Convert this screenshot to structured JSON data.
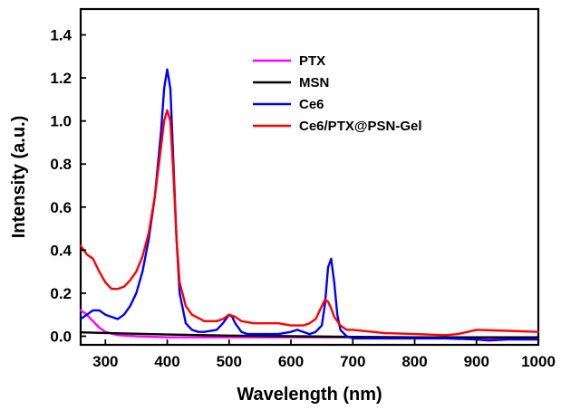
{
  "chart_data": {
    "type": "line",
    "xlabel": "Wavelength (nm)",
    "ylabel": "Intensity (a.u.)",
    "xlim": [
      260,
      1000
    ],
    "ylim": [
      -0.04,
      1.52
    ],
    "xticks": [
      300,
      400,
      500,
      600,
      700,
      800,
      900,
      1000
    ],
    "yticks": [
      0.0,
      0.2,
      0.4,
      0.6,
      0.8,
      1.0,
      1.2,
      1.4
    ],
    "ytick_labels": [
      "0.0",
      "0.2",
      "0.4",
      "0.6",
      "0.8",
      "1.0",
      "1.2",
      "1.4"
    ],
    "grid": false,
    "legend_position": "top-center",
    "series": [
      {
        "name": "PTX",
        "color": "#ff00ff",
        "x": [
          260,
          270,
          280,
          290,
          300,
          320,
          350,
          400,
          500,
          600,
          700,
          800,
          900,
          1000
        ],
        "y": [
          0.12,
          0.1,
          0.07,
          0.04,
          0.02,
          0.005,
          0.0,
          -0.005,
          -0.005,
          -0.005,
          -0.005,
          -0.005,
          -0.01,
          -0.01
        ]
      },
      {
        "name": "MSN",
        "color": "#000000",
        "x": [
          260,
          300,
          400,
          500,
          600,
          700,
          800,
          900,
          1000
        ],
        "y": [
          0.018,
          0.015,
          0.008,
          0.003,
          0.0,
          -0.003,
          -0.005,
          -0.005,
          -0.005
        ]
      },
      {
        "name": "Ce6",
        "color": "#0000ff",
        "x": [
          260,
          270,
          280,
          290,
          300,
          310,
          320,
          330,
          340,
          350,
          360,
          370,
          380,
          390,
          395,
          400,
          405,
          410,
          415,
          420,
          430,
          440,
          450,
          460,
          480,
          490,
          500,
          505,
          510,
          520,
          530,
          540,
          560,
          580,
          600,
          610,
          620,
          630,
          640,
          650,
          655,
          660,
          665,
          670,
          675,
          680,
          690,
          700,
          750,
          800,
          850,
          900,
          920,
          950,
          1000
        ],
        "y": [
          0.08,
          0.1,
          0.12,
          0.12,
          0.1,
          0.09,
          0.08,
          0.1,
          0.14,
          0.2,
          0.3,
          0.45,
          0.65,
          0.95,
          1.15,
          1.24,
          1.15,
          0.8,
          0.45,
          0.2,
          0.06,
          0.03,
          0.02,
          0.02,
          0.03,
          0.06,
          0.1,
          0.09,
          0.06,
          0.02,
          0.01,
          0.01,
          0.01,
          0.01,
          0.02,
          0.03,
          0.02,
          0.01,
          0.02,
          0.05,
          0.15,
          0.32,
          0.36,
          0.25,
          0.1,
          0.03,
          0.0,
          -0.01,
          -0.01,
          -0.01,
          -0.01,
          -0.015,
          -0.02,
          -0.015,
          -0.015
        ]
      },
      {
        "name": "Ce6/PTX@PSN-Gel",
        "color": "#ff0000",
        "x": [
          260,
          270,
          280,
          290,
          300,
          310,
          320,
          330,
          340,
          350,
          360,
          370,
          380,
          390,
          395,
          400,
          405,
          410,
          415,
          420,
          430,
          440,
          460,
          480,
          490,
          500,
          510,
          520,
          540,
          560,
          580,
          600,
          620,
          630,
          640,
          650,
          655,
          660,
          665,
          670,
          680,
          690,
          700,
          750,
          800,
          850,
          870,
          900,
          950,
          1000
        ],
        "y": [
          0.42,
          0.38,
          0.36,
          0.3,
          0.25,
          0.22,
          0.22,
          0.23,
          0.26,
          0.3,
          0.37,
          0.48,
          0.65,
          0.88,
          1.0,
          1.05,
          1.0,
          0.75,
          0.45,
          0.25,
          0.14,
          0.1,
          0.07,
          0.07,
          0.08,
          0.1,
          0.09,
          0.07,
          0.06,
          0.06,
          0.06,
          0.05,
          0.05,
          0.06,
          0.08,
          0.14,
          0.17,
          0.16,
          0.13,
          0.09,
          0.05,
          0.03,
          0.03,
          0.015,
          0.01,
          0.005,
          0.01,
          0.03,
          0.025,
          0.02
        ]
      }
    ]
  }
}
